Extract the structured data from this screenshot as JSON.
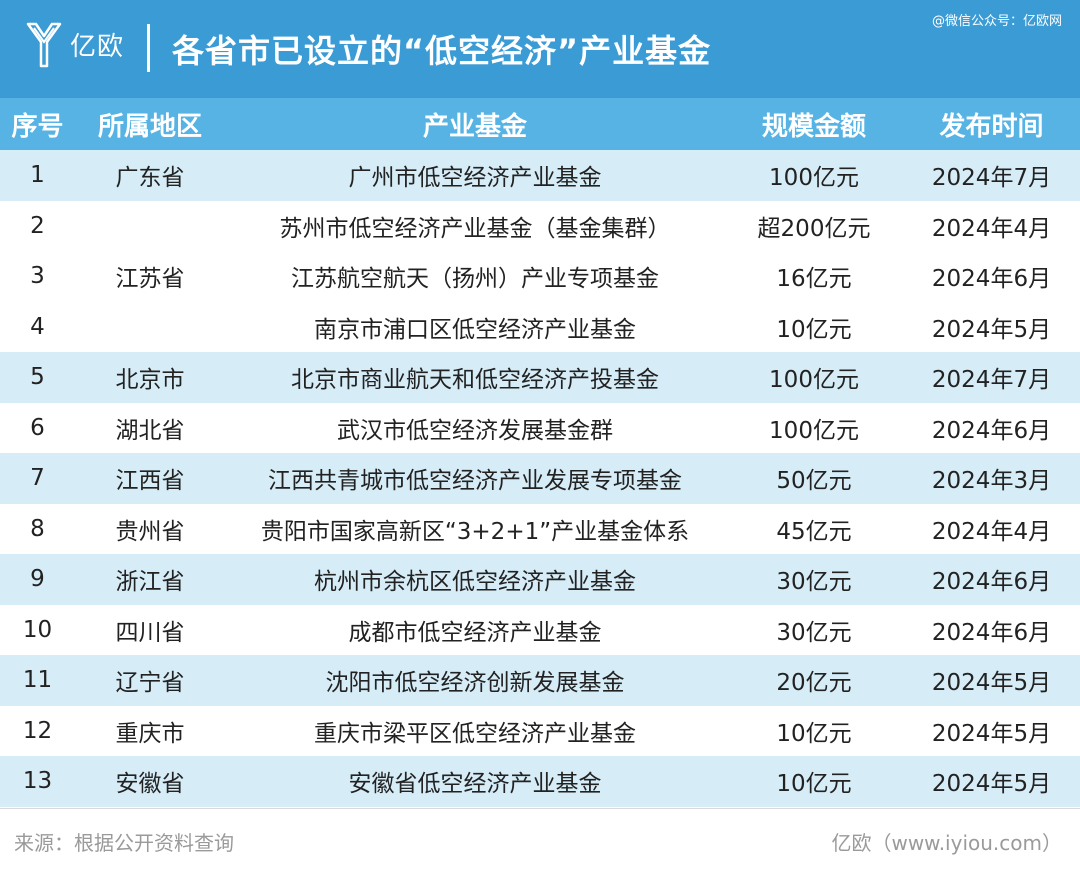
{
  "header": {
    "logo_text": "亿欧",
    "title": "各省市已设立的“低空经济”产业基金",
    "credit": "@微信公众号：亿欧网",
    "background": "#3a9bd5"
  },
  "table": {
    "columns": [
      "序号",
      "所属地区",
      "产业基金",
      "规模金额",
      "发布时间"
    ],
    "header_color": "#56b3e3",
    "shade_color": "#d6ecf7",
    "rows": [
      {
        "no": "1",
        "region": "广东省",
        "fund": "广州市低空经济产业基金",
        "amount": "100亿元",
        "date": "2024年7月"
      },
      {
        "no": "2",
        "region": "",
        "fund": "苏州市低空经济产业基金（基金集群）",
        "amount": "超200亿元",
        "date": "2024年4月"
      },
      {
        "no": "3",
        "region": "",
        "fund": "江苏航空航天（扬州）产业专项基金",
        "amount": "16亿元",
        "date": "2024年6月"
      },
      {
        "no": "4",
        "region": "",
        "fund": "南京市浦口区低空经济产业基金",
        "amount": "10亿元",
        "date": "2024年5月"
      },
      {
        "no": "5",
        "region": "北京市",
        "fund": "北京市商业航天和低空经济产投基金",
        "amount": "100亿元",
        "date": "2024年7月"
      },
      {
        "no": "6",
        "region": "湖北省",
        "fund": "武汉市低空经济发展基金群",
        "amount": "100亿元",
        "date": "2024年6月"
      },
      {
        "no": "7",
        "region": "江西省",
        "fund": "江西共青城市低空经济产业发展专项基金",
        "amount": "50亿元",
        "date": "2024年3月"
      },
      {
        "no": "8",
        "region": "贵州省",
        "fund": "贵阳市国家高新区“3+2+1”产业基金体系",
        "amount": "45亿元",
        "date": "2024年4月"
      },
      {
        "no": "9",
        "region": "浙江省",
        "fund": "杭州市余杭区低空经济产业基金",
        "amount": "30亿元",
        "date": "2024年6月"
      },
      {
        "no": "10",
        "region": "四川省",
        "fund": "成都市低空经济产业基金",
        "amount": "30亿元",
        "date": "2024年6月"
      },
      {
        "no": "11",
        "region": "辽宁省",
        "fund": "沈阳市低空经济创新发展基金",
        "amount": "20亿元",
        "date": "2024年5月"
      },
      {
        "no": "12",
        "region": "重庆市",
        "fund": "重庆市梁平区低空经济产业基金",
        "amount": "10亿元",
        "date": "2024年5月"
      },
      {
        "no": "13",
        "region": "安徽省",
        "fund": "安徽省低空经济产业基金",
        "amount": "10亿元",
        "date": "2024年5月"
      }
    ],
    "merged_region": {
      "label": "江苏省",
      "span_rows": [
        2,
        3,
        4
      ]
    }
  },
  "footer": {
    "source": "来源：根据公开资料查询",
    "site": "亿欧（www.iyiou.com）"
  }
}
